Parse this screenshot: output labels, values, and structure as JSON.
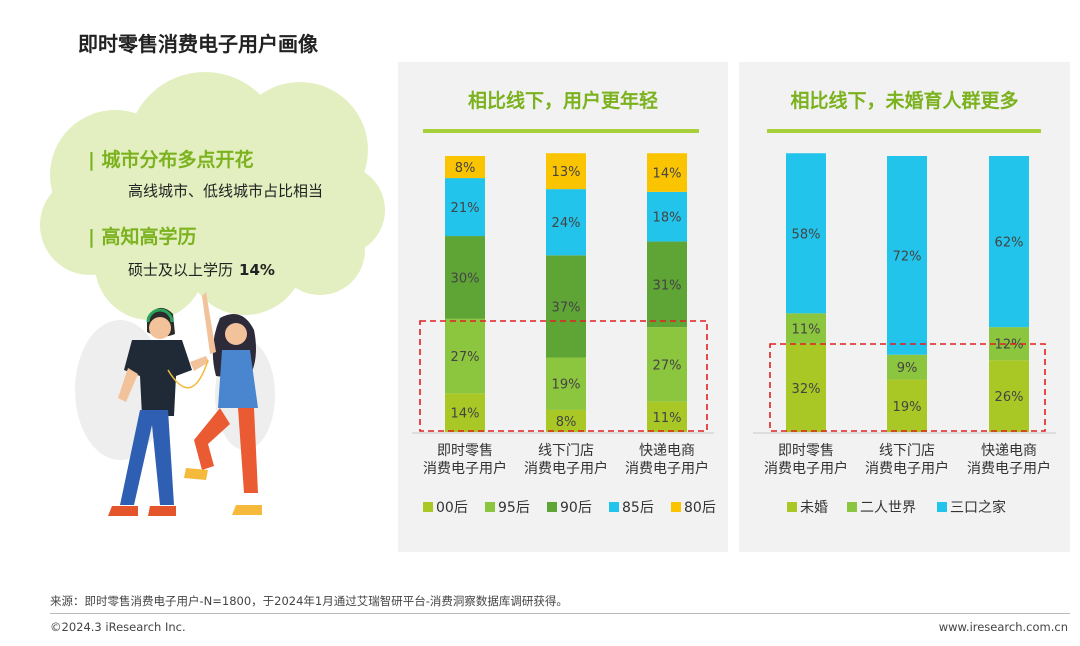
{
  "page": {
    "title": "即时零售消费电子用户画像"
  },
  "cloud": {
    "headline1": "| 城市分布多点开花",
    "sub1": "高线城市、低线城市占比相当",
    "headline2": "| 高知高学历",
    "sub2_text": "硕士及以上学历",
    "sub2_value": "14%"
  },
  "chart_data": [
    {
      "type": "bar",
      "stacked": true,
      "title": "相比线下，用户更年轻",
      "categories": [
        [
          "即时零售",
          "消费电子用户"
        ],
        [
          "线下门店",
          "消费电子用户"
        ],
        [
          "快递电商",
          "消费电子用户"
        ]
      ],
      "series": [
        {
          "name": "00后",
          "color": "#a9c826",
          "values": [
            14,
            8,
            11
          ]
        },
        {
          "name": "95后",
          "color": "#8cc63f",
          "values": [
            27,
            19,
            27
          ]
        },
        {
          "name": "90后",
          "color": "#5fa536",
          "values": [
            30,
            37,
            31
          ]
        },
        {
          "name": "85后",
          "color": "#22c4ec",
          "values": [
            21,
            24,
            18
          ]
        },
        {
          "name": "80后",
          "color": "#fbc400",
          "values": [
            8,
            13,
            14
          ]
        }
      ],
      "ylim": [
        0,
        100
      ],
      "legend": "bottom"
    },
    {
      "type": "bar",
      "stacked": true,
      "title": "相比线下，未婚育人群更多",
      "categories": [
        [
          "即时零售",
          "消费电子用户"
        ],
        [
          "线下门店",
          "消费电子用户"
        ],
        [
          "快递电商",
          "消费电子用户"
        ]
      ],
      "series": [
        {
          "name": "未婚",
          "color": "#a9c826",
          "values": [
            32,
            19,
            26
          ]
        },
        {
          "name": "二人世界",
          "color": "#8cc63f",
          "values": [
            11,
            9,
            12
          ]
        },
        {
          "name": "三口之家",
          "color": "#22c4ec",
          "values": [
            58,
            72,
            62
          ]
        }
      ],
      "ylim": [
        0,
        100
      ],
      "legend": "bottom"
    }
  ],
  "footer": {
    "source": "来源：即时零售消费电子用户-N=1800，于2024年1月通过艾瑞智研平台-消费洞察数据库调研获得。",
    "copyright": "©2024.3 iResearch Inc.",
    "website": "www.iresearch.com.cn"
  }
}
